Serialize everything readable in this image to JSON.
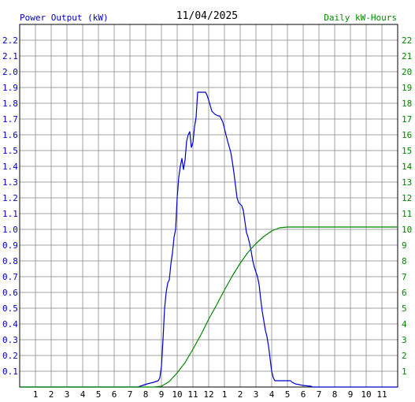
{
  "chart_data": {
    "type": "line",
    "title": "11/04/2025",
    "left_axis_label": "Power Output (kW)",
    "right_axis_label": "Daily kW-Hours",
    "colors": {
      "power": "#0000cc",
      "energy": "#008800",
      "grid": "#a0a0a0",
      "axis": "#000000"
    },
    "grid": true,
    "x_range_hours": [
      0,
      24
    ],
    "x_tick_labels": [
      "1",
      "2",
      "3",
      "4",
      "5",
      "6",
      "7",
      "8",
      "9",
      "10",
      "11",
      "12",
      "1",
      "2",
      "3",
      "4",
      "5",
      "6",
      "7",
      "8",
      "9",
      "10",
      "11"
    ],
    "left_ylim": [
      0,
      2.3
    ],
    "left_tick_labels": [
      "0.1",
      "0.2",
      "0.3",
      "0.4",
      "0.5",
      "0.6",
      "0.7",
      "0.8",
      "0.9",
      "1.0",
      "1.1",
      "1.2",
      "1.3",
      "1.4",
      "1.5",
      "1.6",
      "1.7",
      "1.8",
      "1.9",
      "2.0",
      "2.1",
      "2.2"
    ],
    "right_ylim": [
      0,
      23
    ],
    "right_tick_labels": [
      "1",
      "2",
      "3",
      "4",
      "5",
      "6",
      "7",
      "8",
      "9",
      "10",
      "11",
      "12",
      "13",
      "14",
      "15",
      "16",
      "17",
      "18",
      "19",
      "20",
      "21",
      "22"
    ],
    "series": [
      {
        "key": "power",
        "x": [
          0,
          7.5,
          7.8,
          8.1,
          8.5,
          8.8,
          8.9,
          9.0,
          9.1,
          9.2,
          9.3,
          9.4,
          9.5,
          9.6,
          9.7,
          9.8,
          9.9,
          10.0,
          10.1,
          10.2,
          10.3,
          10.4,
          10.5,
          10.6,
          10.7,
          10.8,
          10.9,
          11.0,
          11.1,
          11.2,
          11.3,
          11.4,
          11.5,
          11.6,
          11.7,
          11.8,
          11.9,
          12.0,
          12.2,
          12.4,
          12.6,
          12.7,
          12.9,
          13.0,
          13.2,
          13.4,
          13.5,
          13.6,
          13.7,
          13.8,
          13.9,
          14.0,
          14.1,
          14.2,
          14.3,
          14.4,
          14.5,
          14.6,
          14.7,
          14.8,
          14.9,
          15.0,
          15.1,
          15.2,
          15.3,
          15.4,
          15.5,
          15.6,
          15.7,
          15.8,
          15.9,
          16.0,
          16.1,
          16.2,
          16.3,
          16.4,
          16.5,
          16.6,
          16.7,
          16.8,
          16.9,
          17.0,
          17.1,
          17.2,
          17.3,
          17.5,
          18.0,
          18.5,
          18.6,
          24
        ],
        "values": [
          0,
          0,
          0.01,
          0.02,
          0.03,
          0.04,
          0.06,
          0.13,
          0.3,
          0.5,
          0.6,
          0.66,
          0.68,
          0.78,
          0.85,
          0.95,
          1.0,
          1.2,
          1.33,
          1.4,
          1.45,
          1.38,
          1.44,
          1.56,
          1.6,
          1.62,
          1.52,
          1.55,
          1.65,
          1.71,
          1.87,
          1.87,
          1.87,
          1.87,
          1.87,
          1.87,
          1.85,
          1.82,
          1.75,
          1.73,
          1.72,
          1.72,
          1.68,
          1.64,
          1.56,
          1.49,
          1.43,
          1.36,
          1.28,
          1.2,
          1.17,
          1.16,
          1.15,
          1.12,
          1.05,
          0.98,
          0.95,
          0.91,
          0.86,
          0.8,
          0.76,
          0.73,
          0.7,
          0.65,
          0.56,
          0.48,
          0.42,
          0.36,
          0.32,
          0.26,
          0.18,
          0.1,
          0.06,
          0.04,
          0.04,
          0.04,
          0.04,
          0.04,
          0.04,
          0.04,
          0.04,
          0.04,
          0.04,
          0.04,
          0.03,
          0.02,
          0.01,
          0.005,
          0,
          0
        ]
      },
      {
        "key": "energy",
        "x": [
          0,
          8.5,
          9.0,
          9.5,
          10.0,
          10.5,
          11.0,
          11.5,
          12.0,
          12.5,
          13.0,
          13.5,
          14.0,
          14.5,
          15.0,
          15.5,
          16.0,
          16.5,
          17.0,
          17.5,
          24
        ],
        "values": [
          0,
          0,
          0.05,
          0.35,
          0.9,
          1.55,
          2.4,
          3.3,
          4.3,
          5.2,
          6.15,
          7.05,
          7.85,
          8.55,
          9.1,
          9.55,
          9.9,
          10.1,
          10.15,
          10.15,
          10.15
        ]
      }
    ]
  }
}
